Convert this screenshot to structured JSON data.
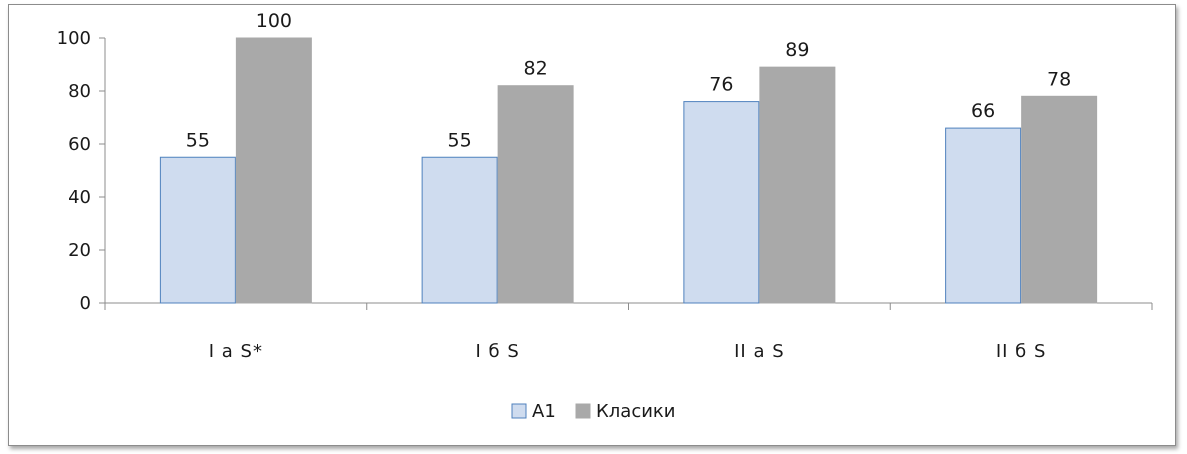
{
  "chart_data": {
    "type": "bar",
    "categories": [
      "I a S*",
      "I б S",
      "II a S",
      "II б S"
    ],
    "series": [
      {
        "name": "A1",
        "values": [
          55,
          55,
          76,
          66
        ],
        "color": "#cfdcef",
        "stroke": "#4f81bd"
      },
      {
        "name": "Класики",
        "values": [
          100,
          82,
          89,
          78
        ],
        "color": "#a9a9a9",
        "stroke": "#a9a9a9"
      }
    ],
    "ylim": [
      0,
      100
    ],
    "yticks": [
      0,
      20,
      40,
      60,
      80,
      100
    ],
    "grid": false,
    "legend_position": "bottom",
    "title": "",
    "xlabel": "",
    "ylabel": ""
  }
}
